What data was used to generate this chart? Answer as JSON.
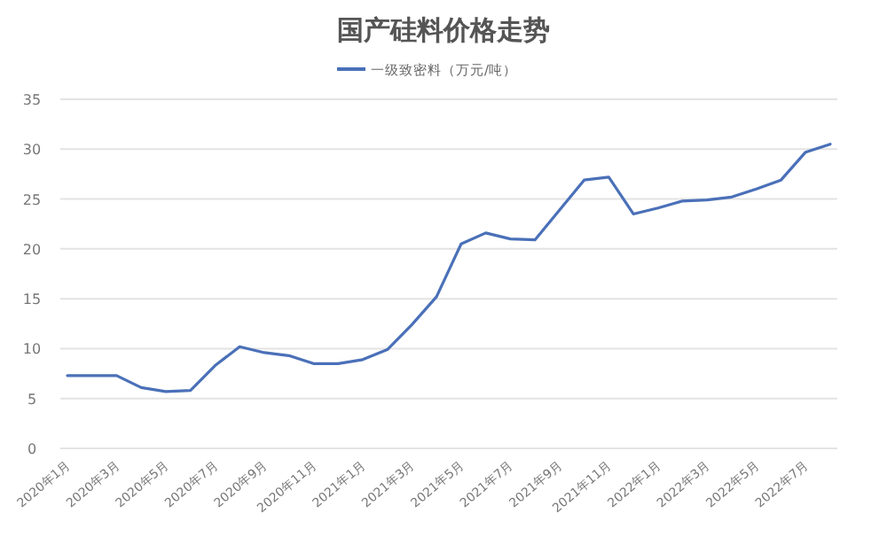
{
  "chart_data": {
    "type": "line",
    "title": "国产硅料价格走势",
    "categories": [
      "2020年1月",
      null,
      "2020年3月",
      null,
      "2020年5月",
      null,
      "2020年7月",
      null,
      "2020年9月",
      null,
      "2020年11月",
      null,
      "2021年1月",
      null,
      "2021年3月",
      null,
      "2021年5月",
      null,
      "2021年7月",
      null,
      "2021年9月",
      null,
      "2021年11月",
      null,
      "2022年1月",
      null,
      "2022年3月",
      null,
      "2022年5月",
      null,
      "2022年7月",
      null
    ],
    "series": [
      {
        "name": "一级致密料（万元/吨）",
        "color": "#4a70b8",
        "values": [
          7.3,
          7.3,
          7.3,
          6.1,
          5.7,
          5.8,
          8.3,
          10.2,
          9.6,
          9.3,
          8.5,
          8.5,
          8.9,
          9.9,
          12.4,
          15.2,
          20.5,
          21.6,
          21.0,
          20.9,
          23.9,
          26.9,
          27.2,
          23.5,
          24.1,
          24.8,
          24.9,
          25.2,
          26.0,
          26.9,
          29.7,
          30.5
        ]
      }
    ],
    "ylim": [
      0,
      35
    ],
    "yticks": [
      0,
      5,
      10,
      15,
      20,
      25,
      30,
      35
    ],
    "grid": "y",
    "legend": "top"
  }
}
